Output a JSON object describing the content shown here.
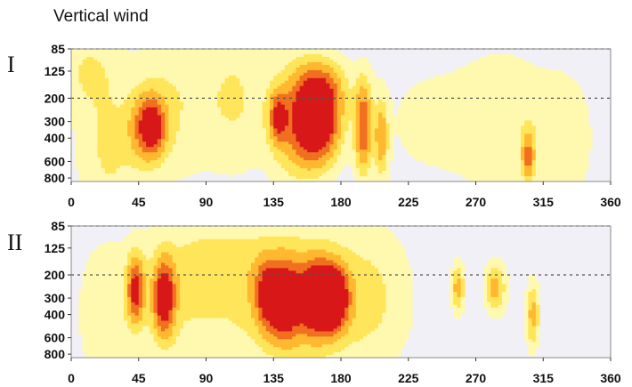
{
  "title": "Vertical wind",
  "chart_data": [
    {
      "type": "heatmap",
      "panel_label": "I",
      "x_ticks": [
        "0",
        "45",
        "90",
        "135",
        "180",
        "225",
        "270",
        "315",
        "360"
      ],
      "y_ticks": [
        "85",
        "125",
        "200",
        "300",
        "400",
        "600",
        "800"
      ],
      "xlim": [
        0,
        360
      ],
      "y_scale": "log",
      "ylim": [
        85,
        850
      ],
      "dashed_levels": [
        85,
        200
      ],
      "colors": [
        "#f0f0f6",
        "#fff9b0",
        "#ffe55a",
        "#ffb830",
        "#f07020",
        "#d81818"
      ],
      "blobs": [
        {
          "x": 52,
          "p": 330,
          "sx": 8,
          "sy": 0.4,
          "a": 4.2
        },
        {
          "x": 55,
          "p": 330,
          "sx": 4,
          "sy": 0.25,
          "a": 1.2
        },
        {
          "x": 138,
          "p": 280,
          "sx": 4,
          "sy": 0.3,
          "a": 3.2
        },
        {
          "x": 150,
          "p": 300,
          "sx": 12,
          "sy": 0.7,
          "a": 2.6
        },
        {
          "x": 165,
          "p": 300,
          "sx": 10,
          "sy": 0.48,
          "a": 5.6
        },
        {
          "x": 168,
          "p": 160,
          "sx": 12,
          "sy": 0.35,
          "a": 2.0
        },
        {
          "x": 195,
          "p": 330,
          "sx": 4,
          "sy": 0.55,
          "a": 3.8
        },
        {
          "x": 207,
          "p": 400,
          "sx": 3,
          "sy": 0.45,
          "a": 2.6
        },
        {
          "x": 305,
          "p": 550,
          "sx": 3,
          "sy": 0.3,
          "a": 2.8
        },
        {
          "x": 25,
          "p": 500,
          "sx": 15,
          "sy": 0.9,
          "a": 1.3
        },
        {
          "x": 70,
          "p": 200,
          "sx": 18,
          "sy": 1.0,
          "a": 1.1
        },
        {
          "x": 110,
          "p": 200,
          "sx": 15,
          "sy": 0.9,
          "a": 1.2
        },
        {
          "x": 240,
          "p": 300,
          "sx": 30,
          "sy": 0.9,
          "a": 0.6
        },
        {
          "x": 290,
          "p": 300,
          "sx": 20,
          "sy": 0.9,
          "a": 0.9
        },
        {
          "x": 330,
          "p": 400,
          "sx": 15,
          "sy": 0.9,
          "a": 0.8
        },
        {
          "x": 10,
          "p": 120,
          "sx": 15,
          "sy": 0.5,
          "a": 1.1
        }
      ]
    },
    {
      "type": "heatmap",
      "panel_label": "II",
      "x_ticks": [
        "0",
        "45",
        "90",
        "135",
        "180",
        "225",
        "270",
        "315",
        "360"
      ],
      "y_ticks": [
        "85",
        "125",
        "200",
        "300",
        "400",
        "600",
        "800"
      ],
      "xlim": [
        0,
        360
      ],
      "y_scale": "log",
      "ylim": [
        85,
        850
      ],
      "dashed_levels": [
        85,
        200
      ],
      "colors": [
        "#f0f0f6",
        "#fff9b0",
        "#ffe55a",
        "#ffb830",
        "#f07020",
        "#d81818"
      ],
      "blobs": [
        {
          "x": 43,
          "p": 260,
          "sx": 4,
          "sy": 0.4,
          "a": 4.0
        },
        {
          "x": 62,
          "p": 300,
          "sx": 5,
          "sy": 0.45,
          "a": 4.6
        },
        {
          "x": 150,
          "p": 300,
          "sx": 25,
          "sy": 0.75,
          "a": 2.6
        },
        {
          "x": 142,
          "p": 320,
          "sx": 7,
          "sy": 0.45,
          "a": 4.0
        },
        {
          "x": 165,
          "p": 300,
          "sx": 8,
          "sy": 0.4,
          "a": 5.6
        },
        {
          "x": 176,
          "p": 300,
          "sx": 6,
          "sy": 0.35,
          "a": 4.6
        },
        {
          "x": 130,
          "p": 280,
          "sx": 5,
          "sy": 0.4,
          "a": 2.6
        },
        {
          "x": 258,
          "p": 250,
          "sx": 3,
          "sy": 0.3,
          "a": 2.4
        },
        {
          "x": 283,
          "p": 250,
          "sx": 5,
          "sy": 0.3,
          "a": 2.4
        },
        {
          "x": 308,
          "p": 400,
          "sx": 3,
          "sy": 0.4,
          "a": 2.4
        },
        {
          "x": 75,
          "p": 300,
          "sx": 30,
          "sy": 0.9,
          "a": 1.2
        },
        {
          "x": 200,
          "p": 300,
          "sx": 20,
          "sy": 0.9,
          "a": 1.2
        },
        {
          "x": 20,
          "p": 400,
          "sx": 12,
          "sy": 0.9,
          "a": 0.8
        },
        {
          "x": 100,
          "p": 150,
          "sx": 25,
          "sy": 0.5,
          "a": 0.8
        }
      ]
    }
  ]
}
